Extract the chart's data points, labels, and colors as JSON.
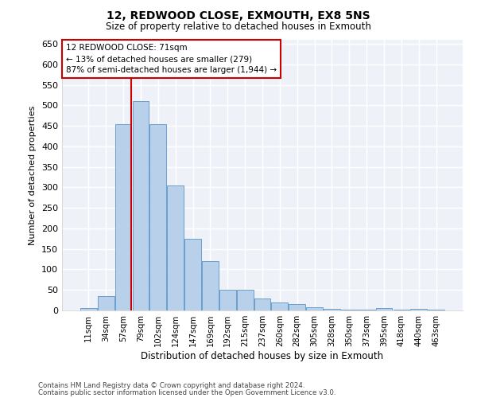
{
  "title": "12, REDWOOD CLOSE, EXMOUTH, EX8 5NS",
  "subtitle": "Size of property relative to detached houses in Exmouth",
  "xlabel": "Distribution of detached houses by size in Exmouth",
  "ylabel": "Number of detached properties",
  "categories": [
    "11sqm",
    "34sqm",
    "57sqm",
    "79sqm",
    "102sqm",
    "124sqm",
    "147sqm",
    "169sqm",
    "192sqm",
    "215sqm",
    "237sqm",
    "260sqm",
    "282sqm",
    "305sqm",
    "328sqm",
    "350sqm",
    "373sqm",
    "395sqm",
    "418sqm",
    "440sqm",
    "463sqm"
  ],
  "values": [
    5,
    35,
    455,
    510,
    455,
    305,
    175,
    120,
    50,
    50,
    30,
    20,
    15,
    7,
    4,
    2,
    2,
    5,
    2,
    4,
    2
  ],
  "bar_color": "#b8d0ea",
  "bar_edge_color": "#6aa0cc",
  "vline_bar_index": 2,
  "vline_color": "#cc0000",
  "annotation_text": "12 REDWOOD CLOSE: 71sqm\n← 13% of detached houses are smaller (279)\n87% of semi-detached houses are larger (1,944) →",
  "annotation_box_color": "#ffffff",
  "annotation_box_edge_color": "#cc0000",
  "ylim": [
    0,
    660
  ],
  "yticks": [
    0,
    50,
    100,
    150,
    200,
    250,
    300,
    350,
    400,
    450,
    500,
    550,
    600,
    650
  ],
  "bg_color": "#eef2f8",
  "footer1": "Contains HM Land Registry data © Crown copyright and database right 2024.",
  "footer2": "Contains public sector information licensed under the Open Government Licence v3.0."
}
